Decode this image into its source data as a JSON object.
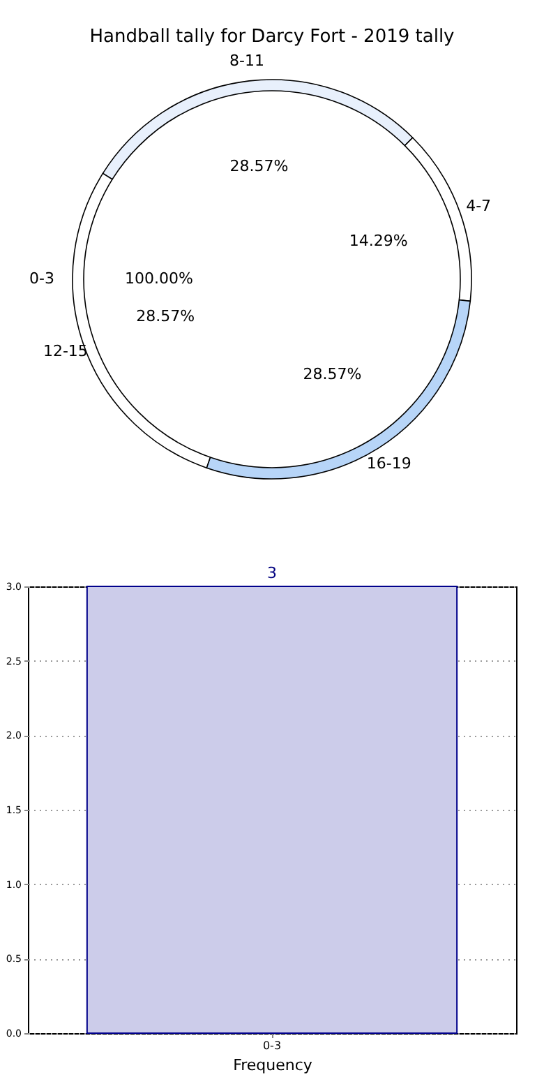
{
  "chart_data": [
    {
      "type": "pie",
      "title": "Handball tally for Darcy Fort - 2019 tally",
      "categories": [
        "0-3"
      ],
      "values": [
        100
      ],
      "colors": [
        "#ffffff"
      ],
      "value_labels": [
        "100.00%"
      ]
    },
    {
      "type": "pie",
      "categories": [
        "8-11",
        "4-7",
        "16-19",
        "12-15"
      ],
      "values": [
        28.57,
        14.29,
        28.57,
        28.57
      ],
      "colors": [
        "#e8f0fc",
        "#ffffff",
        "#b7d5f8",
        "#ffffff"
      ],
      "value_labels": [
        "28.57%",
        "14.29%",
        "28.57%",
        "28.57%"
      ]
    },
    {
      "type": "bar",
      "categories": [
        "0-3"
      ],
      "values": [
        3
      ],
      "colors": [
        "#ccccea"
      ],
      "xlabel": "Frequency",
      "ylim": [
        0,
        3
      ],
      "yticks": [
        {
          "value": 0,
          "label": "0.0"
        },
        {
          "value": 0.5,
          "label": "0.5"
        },
        {
          "value": 1,
          "label": "1.0"
        },
        {
          "value": 1.5,
          "label": "1.5"
        },
        {
          "value": 2,
          "label": "2.0"
        },
        {
          "value": 2.5,
          "label": "2.5"
        },
        {
          "value": 3,
          "label": "3.0"
        }
      ],
      "grid": true,
      "data_labels": true
    }
  ]
}
